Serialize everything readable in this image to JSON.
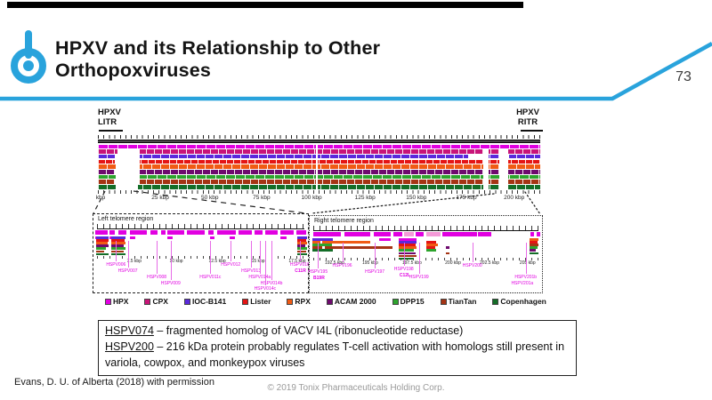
{
  "slide": {
    "title_line1": "HPXV and its Relationship to Other",
    "title_line2": "Orthopoxviruses",
    "page_number": "73",
    "credit": "Evans, D. U. of Alberta (2018) with permission",
    "footer": "© 2019 Tonix Pharmaceuticals Holding Corp.",
    "accent_color": "#29A3DC"
  },
  "figure": {
    "litr": {
      "line1": "HPXV",
      "line2": "LITR"
    },
    "ritr": {
      "line1": "HPXV",
      "line2": "RITR"
    },
    "tracks": [
      {
        "name": "HPX",
        "color": "#E100E1",
        "stripe": 11,
        "gaps": [
          [
            0.492,
            0.497
          ]
        ]
      },
      {
        "name": "CPX",
        "color": "#C81478",
        "stripe": 9,
        "gaps": [
          [
            0.045,
            0.095
          ],
          [
            0.492,
            0.497
          ],
          [
            0.872,
            0.884
          ],
          [
            0.908,
            0.928
          ]
        ]
      },
      {
        "name": "IOC-B141",
        "color": "#5A28DC",
        "stripe": 10,
        "gaps": [
          [
            0.038,
            0.095
          ],
          [
            0.492,
            0.497
          ],
          [
            0.838,
            0.884
          ],
          [
            0.908,
            0.93
          ]
        ]
      },
      {
        "name": "Lister",
        "color": "#E41414",
        "stripe": 8,
        "gaps": [
          [
            0.038,
            0.095
          ],
          [
            0.492,
            0.497
          ],
          [
            0.872,
            0.884
          ],
          [
            0.908,
            0.928
          ]
        ]
      },
      {
        "name": "RPX",
        "color": "#F05A14",
        "stripe": 10,
        "gaps": [
          [
            0.04,
            0.095
          ],
          [
            0.492,
            0.497
          ],
          [
            0.872,
            0.884
          ],
          [
            0.908,
            0.928
          ]
        ]
      },
      {
        "name": "ACAM 2000",
        "color": "#6E0A6E",
        "stripe": 9,
        "gaps": [
          [
            0.038,
            0.095
          ],
          [
            0.492,
            0.497
          ],
          [
            0.872,
            0.884
          ],
          [
            0.908,
            0.928
          ]
        ]
      },
      {
        "name": "DPP15",
        "color": "#2DA42D",
        "stripe": 11,
        "gaps": [
          [
            0.04,
            0.095
          ],
          [
            0.492,
            0.497
          ],
          [
            0.872,
            0.884
          ],
          [
            0.908,
            0.928
          ]
        ]
      },
      {
        "name": "TianTan",
        "color": "#A53414",
        "stripe": 9,
        "gaps": [
          [
            0.038,
            0.095
          ],
          [
            0.492,
            0.497
          ],
          [
            0.872,
            0.884
          ],
          [
            0.908,
            0.928
          ]
        ]
      },
      {
        "name": "Copenhagen",
        "color": "#146E28",
        "stripe": 10,
        "gaps": [
          [
            0.04,
            0.09
          ],
          [
            0.492,
            0.497
          ],
          [
            0.872,
            0.884
          ],
          [
            0.908,
            0.928
          ]
        ]
      }
    ],
    "main_scale": [
      {
        "text": "kbp",
        "f": 0.006
      },
      {
        "text": "25 kbp",
        "f": 0.141
      },
      {
        "text": "50 kbp",
        "f": 0.253
      },
      {
        "text": "75 kbp",
        "f": 0.37
      },
      {
        "text": "100 kbp",
        "f": 0.483
      },
      {
        "text": "125 kbp",
        "f": 0.604
      },
      {
        "text": "150 kbp",
        "f": 0.72
      },
      {
        "text": "175 kbp",
        "f": 0.833
      },
      {
        "text": "200 kbp",
        "f": 0.941
      }
    ]
  },
  "left_box": {
    "title": "Left telomere region",
    "gene_color": "#E100E1",
    "gene_segments": [
      [
        0.01,
        0.065
      ],
      [
        0.075,
        0.1
      ],
      [
        0.115,
        0.155
      ],
      [
        0.17,
        0.25
      ],
      [
        0.265,
        0.3
      ],
      [
        0.315,
        0.335
      ],
      [
        0.345,
        0.425
      ],
      [
        0.435,
        0.52
      ],
      [
        0.535,
        0.56
      ],
      [
        0.575,
        0.665
      ],
      [
        0.675,
        0.74
      ],
      [
        0.75,
        0.79
      ],
      [
        0.8,
        0.86
      ],
      [
        0.87,
        0.935
      ],
      [
        0.945,
        0.99
      ]
    ],
    "gene_segments_row2": [
      [
        0.01,
        0.05
      ],
      [
        0.075,
        0.095
      ],
      [
        0.17,
        0.195
      ],
      [
        0.345,
        0.37
      ],
      [
        0.545,
        0.565
      ],
      [
        0.635,
        0.66
      ],
      [
        0.87,
        0.9
      ]
    ],
    "bars": [
      {
        "c": 2,
        "x0": 0.012,
        "x1": 0.072,
        "r": 0
      },
      {
        "c": 3,
        "x0": 0.012,
        "x1": 0.072,
        "r": 1
      },
      {
        "c": 4,
        "x0": 0.012,
        "x1": 0.066,
        "r": 2
      },
      {
        "c": 5,
        "x0": 0.012,
        "x1": 0.072,
        "r": 3
      },
      {
        "c": 6,
        "x0": 0.012,
        "x1": 0.06,
        "r": 4
      },
      {
        "c": 7,
        "x0": 0.012,
        "x1": 0.05,
        "r": 5
      },
      {
        "c": 8,
        "x0": 0.012,
        "x1": 0.072,
        "r": 6
      },
      {
        "c": 2,
        "x0": 0.085,
        "x1": 0.15,
        "r": 0
      },
      {
        "c": 3,
        "x0": 0.085,
        "x1": 0.145,
        "r": 1
      },
      {
        "c": 4,
        "x0": 0.085,
        "x1": 0.15,
        "r": 2
      },
      {
        "c": 5,
        "x0": 0.085,
        "x1": 0.14,
        "r": 3
      },
      {
        "c": 6,
        "x0": 0.085,
        "x1": 0.15,
        "r": 4
      },
      {
        "c": 7,
        "x0": 0.085,
        "x1": 0.142,
        "r": 5
      },
      {
        "c": 8,
        "x0": 0.085,
        "x1": 0.15,
        "r": 6
      },
      {
        "c": 2,
        "x0": 0.952,
        "x1": 0.995,
        "r": 0
      },
      {
        "c": 3,
        "x0": 0.952,
        "x1": 0.99,
        "r": 1
      },
      {
        "c": 4,
        "x0": 0.952,
        "x1": 0.995,
        "r": 2
      },
      {
        "c": 5,
        "x0": 0.952,
        "x1": 0.988,
        "r": 3
      },
      {
        "c": 6,
        "x0": 0.952,
        "x1": 0.995,
        "r": 4
      },
      {
        "c": 7,
        "x0": 0.952,
        "x1": 0.99,
        "r": 5
      },
      {
        "c": 8,
        "x0": 0.952,
        "x1": 0.995,
        "r": 6
      }
    ],
    "scale_labels": [
      {
        "text": "7.5 kbp",
        "f": 0.19
      },
      {
        "text": "10 kbp",
        "f": 0.386
      },
      {
        "text": "12.5 kbp",
        "f": 0.577
      },
      {
        "text": "15 kbp",
        "f": 0.768
      },
      {
        "text": "17.5 kbp",
        "f": 0.95
      }
    ],
    "genes": [
      {
        "name": "HSPV006",
        "f": 0.105,
        "y": 54
      },
      {
        "name": "HSPV007",
        "f": 0.16,
        "y": 61
      },
      {
        "name": "HSPV008",
        "f": 0.295,
        "y": 68
      },
      {
        "name": "HSPV009",
        "f": 0.36,
        "y": 75
      },
      {
        "name": "HSPV011c",
        "f": 0.545,
        "y": 68
      },
      {
        "name": "HSPV012",
        "f": 0.64,
        "y": 54
      },
      {
        "name": "HSPV013",
        "f": 0.735,
        "y": 61
      },
      {
        "name": "HSPV014a",
        "f": 0.775,
        "y": 68
      },
      {
        "name": "HSPV014b",
        "f": 0.83,
        "y": 75
      },
      {
        "name": "HSPV014c",
        "f": 0.8,
        "y": 81
      },
      {
        "name": "HSPV016",
        "f": 0.962,
        "y": 54
      },
      {
        "name": "C11R",
        "f": 0.965,
        "y": 61,
        "bold": true,
        "noline": true
      }
    ]
  },
  "right_box": {
    "title": "Right telomere region",
    "gene_color": "#E100E1",
    "pale_color": "#F49AD8",
    "gene_segments": [
      [
        0.015,
        0.135
      ],
      [
        0.15,
        0.26
      ],
      [
        0.275,
        0.35
      ],
      [
        0.36,
        0.4
      ],
      [
        0.455,
        0.49
      ],
      [
        0.57,
        0.72
      ],
      [
        0.725,
        0.78
      ],
      [
        0.95,
        0.965
      ],
      [
        0.978,
        0.992
      ]
    ],
    "gene_segments_pale": [
      [
        0.405,
        0.45
      ],
      [
        0.5,
        0.565
      ]
    ],
    "gene_segments_row2": [
      [
        0.02,
        0.065
      ],
      [
        0.3,
        0.35
      ],
      [
        0.95,
        0.965
      ]
    ],
    "bars": [
      {
        "c": 2,
        "x0": 0.012,
        "x1": 0.1,
        "r": 0
      },
      {
        "c": 4,
        "x0": 0.012,
        "x1": 0.045,
        "r": 1
      },
      {
        "c": 4,
        "x0": 0.055,
        "x1": 0.26,
        "r": 1
      },
      {
        "c": 6,
        "x0": 0.012,
        "x1": 0.095,
        "r": 2
      },
      {
        "c": 7,
        "x0": 0.012,
        "x1": 0.055,
        "r": 3
      },
      {
        "c": 7,
        "x0": 0.065,
        "x1": 0.355,
        "r": 3
      },
      {
        "c": 8,
        "x0": 0.012,
        "x1": 0.1,
        "r": 4
      },
      {
        "c": 0,
        "x0": 0.385,
        "x1": 0.46,
        "r": 0
      },
      {
        "c": 2,
        "x0": 0.385,
        "x1": 0.46,
        "r": 1
      },
      {
        "c": 3,
        "x0": 0.385,
        "x1": 0.455,
        "r": 2
      },
      {
        "c": 4,
        "x0": 0.385,
        "x1": 0.46,
        "r": 3
      },
      {
        "c": 6,
        "x0": 0.385,
        "x1": 0.45,
        "r": 4
      },
      {
        "c": 5,
        "x0": 0.385,
        "x1": 0.455,
        "r": 5
      },
      {
        "c": 7,
        "x0": 0.385,
        "x1": 0.46,
        "r": 6
      },
      {
        "c": 8,
        "x0": 0.385,
        "x1": 0.45,
        "r": 7
      },
      {
        "c": 3,
        "x0": 0.5,
        "x1": 0.545,
        "r": 1
      },
      {
        "c": 4,
        "x0": 0.5,
        "x1": 0.55,
        "r": 2
      },
      {
        "c": 3,
        "x0": 0.5,
        "x1": 0.54,
        "r": 3
      },
      {
        "c": 6,
        "x0": 0.5,
        "x1": 0.545,
        "r": 4
      },
      {
        "c": 5,
        "x0": 0.585,
        "x1": 0.602,
        "r": 3
      },
      {
        "c": 7,
        "x0": 0.585,
        "x1": 0.602,
        "r": 5
      },
      {
        "c": 4,
        "x0": 0.945,
        "x1": 0.985,
        "r": 0
      },
      {
        "c": 3,
        "x0": 0.945,
        "x1": 0.98,
        "r": 1
      },
      {
        "c": 7,
        "x0": 0.945,
        "x1": 0.985,
        "r": 2
      },
      {
        "c": 6,
        "x0": 0.945,
        "x1": 0.98,
        "r": 3
      },
      {
        "c": 5,
        "x0": 0.945,
        "x1": 0.975,
        "r": 4
      },
      {
        "c": 8,
        "x0": 0.945,
        "x1": 0.985,
        "r": 5
      }
    ],
    "scale_labels": [
      {
        "text": "192.5 kbp",
        "f": 0.107
      },
      {
        "text": "195 kbp",
        "f": 0.26
      },
      {
        "text": "197.5 kbp",
        "f": 0.44
      },
      {
        "text": "200 kbp",
        "f": 0.617
      },
      {
        "text": "202.5 kbp",
        "f": 0.774
      },
      {
        "text": "205 kbp",
        "f": 0.938
      }
    ],
    "genes": [
      {
        "name": "HSPV195",
        "f": 0.035,
        "y": 60
      },
      {
        "name": "B19R",
        "f": 0.04,
        "y": 67,
        "bold": true,
        "noline": true
      },
      {
        "name": "HSPV196",
        "f": 0.14,
        "y": 53
      },
      {
        "name": "HSPV197",
        "f": 0.28,
        "y": 60
      },
      {
        "name": "HSPV198",
        "f": 0.405,
        "y": 57
      },
      {
        "name": "C12L",
        "f": 0.41,
        "y": 64,
        "bold": true,
        "noline": true
      },
      {
        "name": "HSPV199",
        "f": 0.47,
        "y": 66
      },
      {
        "name": "HSPV200",
        "f": 0.7,
        "y": 53
      },
      {
        "name": "HSPV201b",
        "f": 0.93,
        "y": 66
      },
      {
        "name": "HSPV201a",
        "f": 0.915,
        "y": 73,
        "noline": true
      }
    ]
  },
  "note": {
    "lines": [
      {
        "term": "HSPV074",
        "rest": " – fragmented homolog of VACV I4L (ribonucleotide reductase)"
      },
      {
        "term": "HSPV200",
        "rest": " – 216 kDa protein probably regulates T-cell activation with homologs still present in variola, cowpox, and monkeypox viruses"
      }
    ]
  }
}
